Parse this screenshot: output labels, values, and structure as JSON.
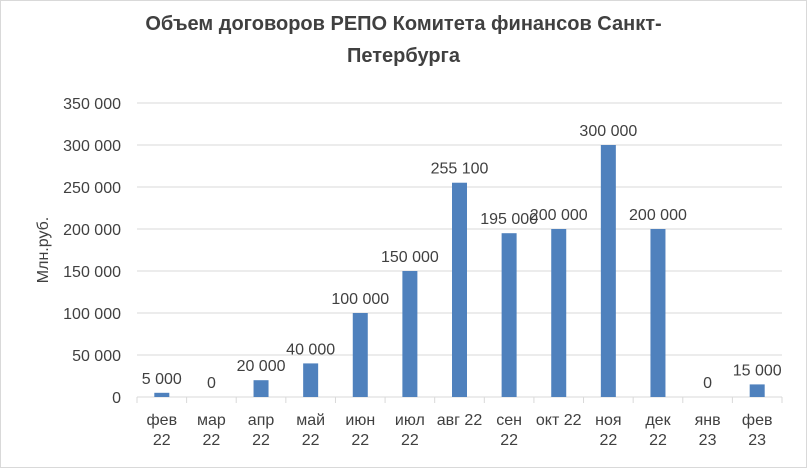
{
  "chart_data": {
    "type": "bar",
    "title_line1": "Объем договоров  РЕПО Комитета финансов Санкт-",
    "title_line2": "Петербурга",
    "ylabel": "Млн.руб.",
    "xlabel": "",
    "ylim": [
      0,
      350000
    ],
    "y_ticks": [
      0,
      50000,
      100000,
      150000,
      200000,
      250000,
      300000,
      350000
    ],
    "y_tick_labels": [
      "0",
      "50 000",
      "100 000",
      "150 000",
      "200 000",
      "250 000",
      "300 000",
      "350 000"
    ],
    "grid": true,
    "legend": false,
    "bar_color": "#4f81bd",
    "categories": [
      [
        "фев",
        "22"
      ],
      [
        "мар",
        "22"
      ],
      [
        "апр",
        "22"
      ],
      [
        "май",
        "22"
      ],
      [
        "июн",
        "22"
      ],
      [
        "июл",
        "22"
      ],
      [
        "авг 22"
      ],
      [
        "сен",
        "22"
      ],
      [
        "окт 22"
      ],
      [
        "ноя",
        "22"
      ],
      [
        "дек",
        "22"
      ],
      [
        "янв",
        "23"
      ],
      [
        "фев",
        "23"
      ]
    ],
    "values": [
      5000,
      0,
      20000,
      40000,
      100000,
      150000,
      255100,
      195000,
      200000,
      300000,
      200000,
      0,
      15000
    ],
    "data_labels": [
      "5 000",
      "0",
      "20 000",
      "40 000",
      "100 000",
      "150 000",
      "255 100",
      "195 000",
      "200 000",
      "300 000",
      "200 000",
      "0",
      "15 000"
    ]
  }
}
